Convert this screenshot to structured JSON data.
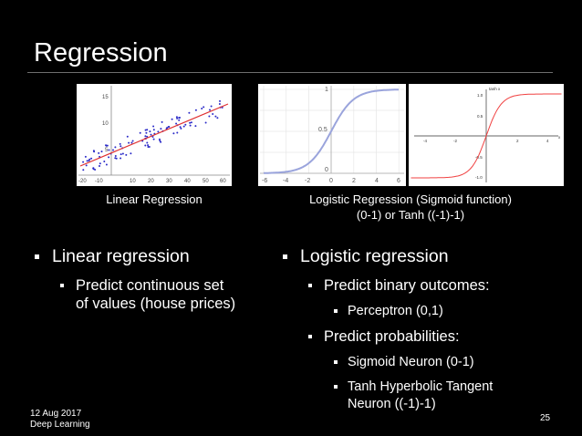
{
  "slide": {
    "title": "Regression",
    "caption_linear": "Linear Regression",
    "caption_logistic_line1": "Logistic Regression (Sigmoid function)",
    "caption_logistic_line2": "(0-1) or Tanh ((-1)-1)",
    "left_bullet": "Linear regression",
    "left_sub_line1": "Predict continuous set",
    "left_sub_line2": "of values (house prices)",
    "right_bullet": "Logistic regression",
    "right_sub1": "Predict binary outcomes:",
    "right_sub1_item": "Perceptron (0,1)",
    "right_sub2": "Predict probabilities:",
    "right_sub2_item1": "Sigmoid Neuron (0-1)",
    "right_sub2_item2_line1": "Tanh Hyperbolic Tangent",
    "right_sub2_item2_line2": "Neuron ((-1)-1)",
    "footer_date": "12 Aug 2017",
    "footer_course": "Deep Learning",
    "page_number": "25"
  },
  "figures": {
    "linear": {
      "x_ticks": [
        "-20",
        "-10",
        "10",
        "20",
        "30",
        "40",
        "50",
        "60"
      ],
      "y_ticks": [
        "15",
        "10",
        "5"
      ],
      "point_color": "#2b2bc8",
      "line_color": "#e03030"
    },
    "sigmoid": {
      "x_ticks": [
        "-6",
        "-4",
        "-2",
        "0",
        "2",
        "4",
        "6"
      ],
      "y_ticks": [
        "1",
        "0.5",
        "0"
      ],
      "curve_color": "#9aa4dc",
      "grid": true
    },
    "tanh": {
      "title": "tanh x",
      "x_ticks": [
        "-4",
        "-2",
        "2",
        "4"
      ],
      "y_ticks": [
        "1.0",
        "0.5",
        "-0.5",
        "-1.0"
      ],
      "axis_label_x": "x",
      "curve_color": "#f04040"
    }
  }
}
